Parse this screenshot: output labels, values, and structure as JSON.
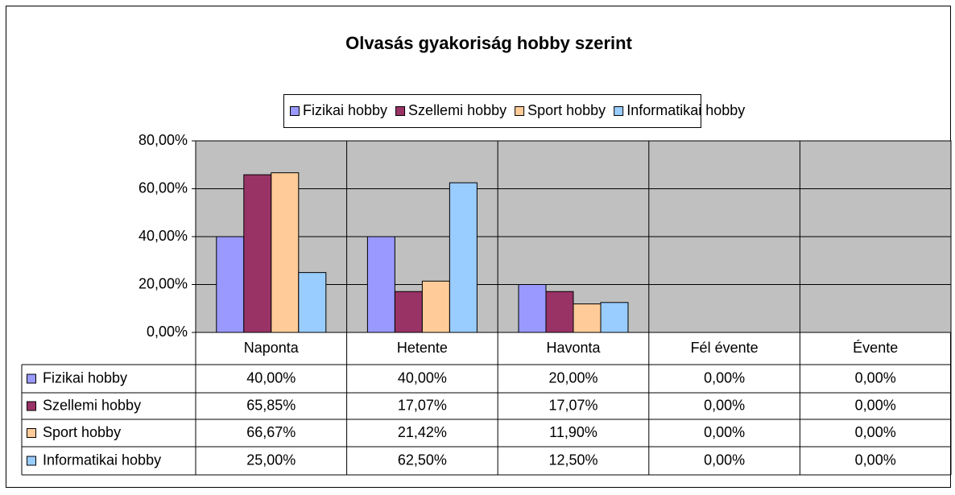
{
  "chart_data": {
    "type": "bar",
    "title": "Olvasás gyakoriság hobby szerint",
    "categories": [
      "Naponta",
      "Hetente",
      "Havonta",
      "Fél évente",
      "Évente"
    ],
    "series": [
      {
        "name": "Fizikai hobby",
        "color": "#9999ff",
        "values": [
          40,
          40,
          20,
          0,
          0
        ],
        "value_labels": [
          "40,00%",
          "40,00%",
          "20,00%",
          "0,00%",
          "0,00%"
        ]
      },
      {
        "name": "Szellemi hobby",
        "color": "#993366",
        "values": [
          65.85,
          17.07,
          17.07,
          0,
          0
        ],
        "value_labels": [
          "65,85%",
          "17,07%",
          "17,07%",
          "0,00%",
          "0,00%"
        ]
      },
      {
        "name": "Sport hobby",
        "color": "#ffcc99",
        "values": [
          66.67,
          21.42,
          11.9,
          0,
          0
        ],
        "value_labels": [
          "66,67%",
          "21,42%",
          "11,90%",
          "0,00%",
          "0,00%"
        ]
      },
      {
        "name": "Informatikai hobby",
        "color": "#99ccff",
        "values": [
          25,
          62.5,
          12.5,
          0,
          0
        ],
        "value_labels": [
          "25,00%",
          "62,50%",
          "12,50%",
          "0,00%",
          "0,00%"
        ]
      }
    ],
    "ylim": [
      0,
      80
    ],
    "yticks": [
      {
        "value": 0,
        "label": "0,00%"
      },
      {
        "value": 20,
        "label": "20,00%"
      },
      {
        "value": 40,
        "label": "40,00%"
      },
      {
        "value": 60,
        "label": "60,00%"
      },
      {
        "value": 80,
        "label": "80,00%"
      }
    ],
    "grid": true
  }
}
